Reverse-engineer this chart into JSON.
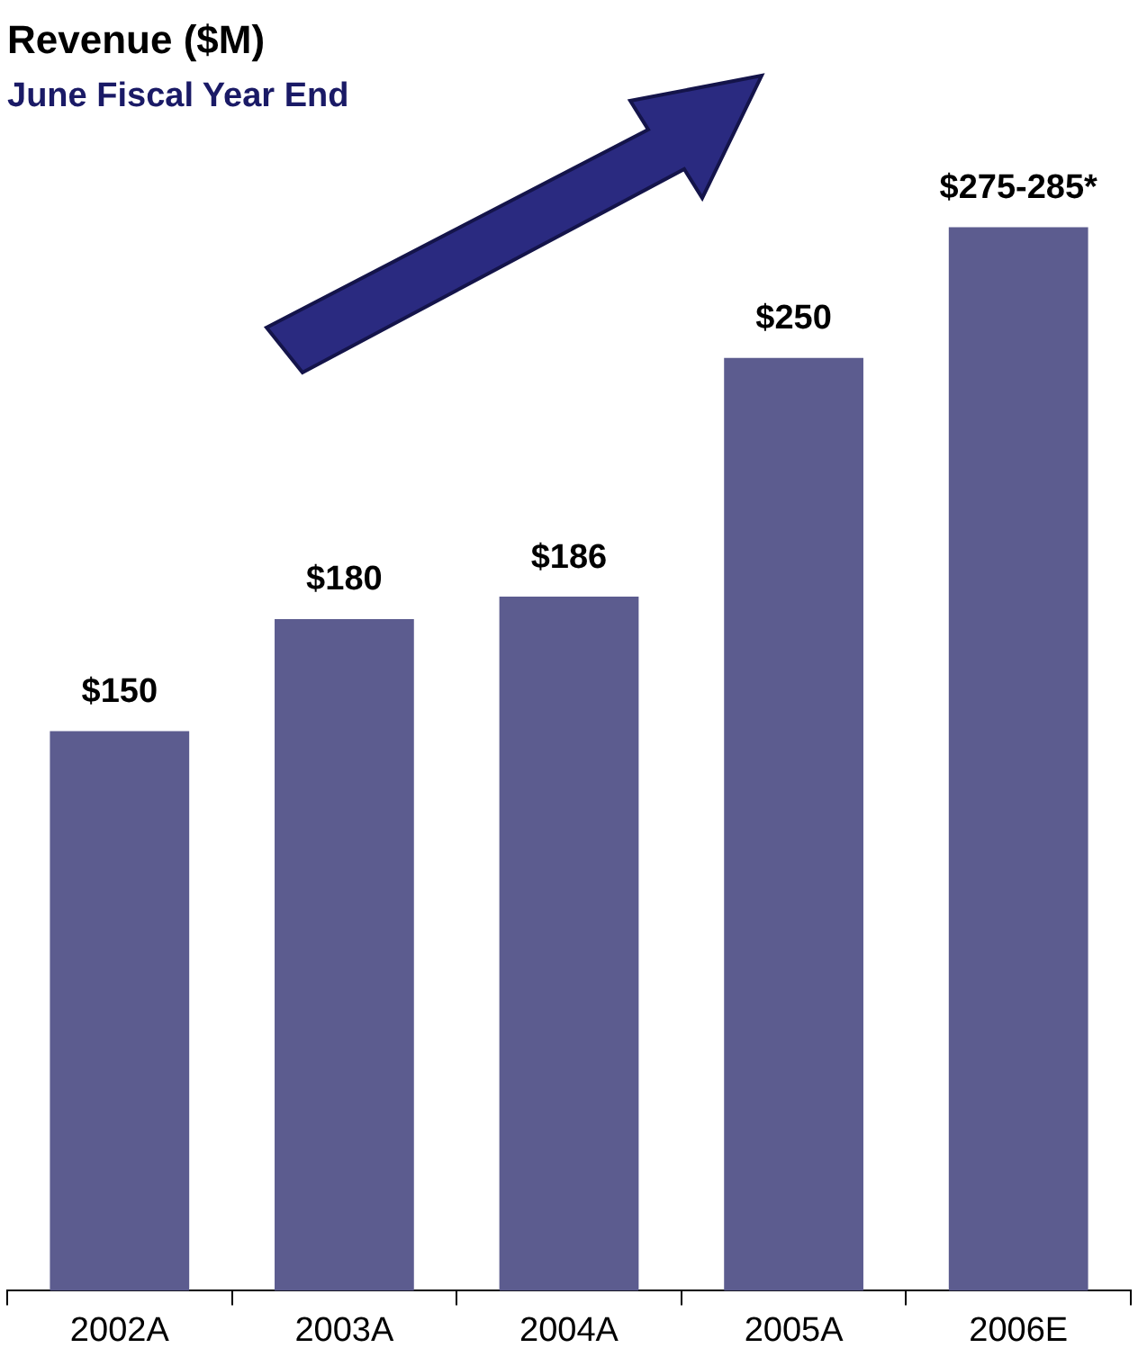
{
  "chart_data": {
    "type": "bar",
    "title": "Revenue ($M)",
    "subtitle": "June Fiscal Year End",
    "categories": [
      "2002A",
      "2003A",
      "2004A",
      "2005A",
      "2006E"
    ],
    "values": [
      150,
      180,
      186,
      250,
      285
    ],
    "value_labels": [
      "$150",
      "$180",
      "$186",
      "$250",
      "$275-285*"
    ],
    "color": "#5c5c8f",
    "grid": false
  }
}
